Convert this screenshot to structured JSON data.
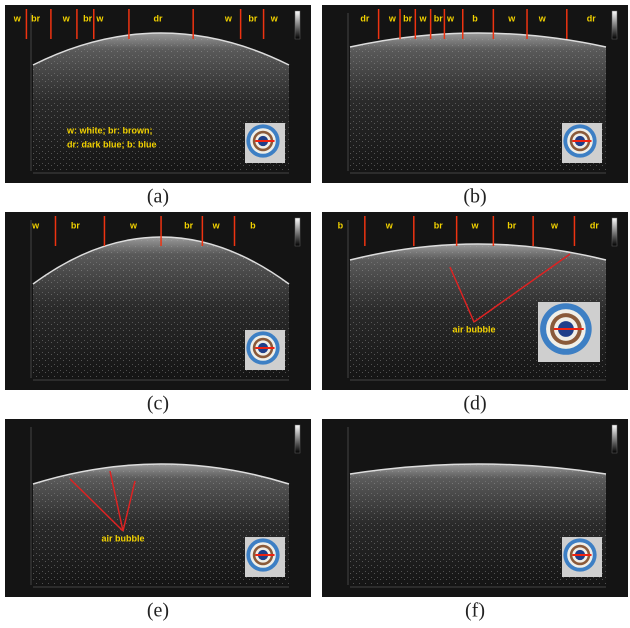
{
  "panels": [
    {
      "caption": "(a)",
      "regions": [
        "w",
        "br",
        "w",
        "br",
        "w",
        "dr",
        "w",
        "br",
        "w"
      ],
      "legend": [
        "w: white; br: brown;",
        "dr: dark blue; b: blue"
      ]
    },
    {
      "caption": "(b)",
      "regions": [
        "dr",
        "w",
        "br",
        "w",
        "br",
        "w",
        "b",
        "w",
        "w",
        "dr"
      ]
    },
    {
      "caption": "(c)",
      "regions": [
        "w",
        "br",
        "w",
        "br",
        "w",
        "b"
      ]
    },
    {
      "caption": "(d)",
      "regions": [
        "b",
        "w",
        "br",
        "w",
        "br",
        "w",
        "dr"
      ],
      "annotation": "air bubble"
    },
    {
      "caption": "(e)",
      "annotation": "air bubble"
    },
    {
      "caption": "(f)"
    }
  ]
}
